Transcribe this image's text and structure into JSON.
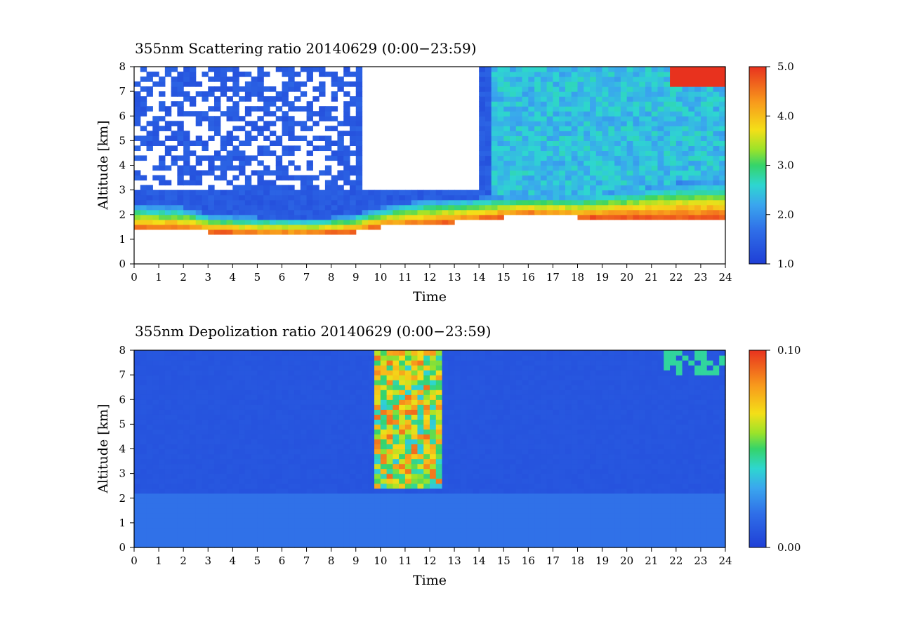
{
  "chart_data": [
    {
      "type": "heatmap",
      "title": "355nm Scattering ratio  20140629 (0:00−23:59)",
      "xlabel": "Time",
      "ylabel": "Altitude [km]",
      "xlim": [
        0,
        24
      ],
      "ylim": [
        0,
        8
      ],
      "x_ticks": [
        "0",
        "1",
        "2",
        "3",
        "4",
        "5",
        "6",
        "7",
        "8",
        "9",
        "10",
        "11",
        "12",
        "13",
        "14",
        "15",
        "16",
        "17",
        "18",
        "19",
        "20",
        "21",
        "22",
        "23",
        "24"
      ],
      "y_ticks": [
        "0",
        "1",
        "2",
        "3",
        "4",
        "5",
        "6",
        "7",
        "8"
      ],
      "colorbar": {
        "range": [
          1.0,
          5.0
        ],
        "tick_labels": [
          "5.0",
          "4.0",
          "3.0",
          "2.0",
          "1.0"
        ],
        "tick_values": [
          5.0,
          4.0,
          3.0,
          2.0,
          1.0
        ]
      },
      "features": {
        "background_value": 1.4,
        "no_data_color": "#ffffff",
        "bl_top_by_hour": [
          {
            "t": 0,
            "top": 2.4,
            "bottom": 1.4
          },
          {
            "t": 2,
            "top": 2.3,
            "bottom": 1.4
          },
          {
            "t": 3,
            "top": 2.0,
            "bottom": 1.3
          },
          {
            "t": 5,
            "top": 1.9,
            "bottom": 1.2
          },
          {
            "t": 7,
            "top": 1.8,
            "bottom": 1.2
          },
          {
            "t": 9,
            "top": 2.0,
            "bottom": 1.3
          },
          {
            "t": 10,
            "top": 2.3,
            "bottom": 1.5
          },
          {
            "t": 12,
            "top": 2.6,
            "bottom": 1.6
          },
          {
            "t": 14,
            "top": 2.7,
            "bottom": 1.8
          },
          {
            "t": 16,
            "top": 2.8,
            "bottom": 2.0
          },
          {
            "t": 18,
            "top": 2.8,
            "bottom": 1.9
          },
          {
            "t": 20,
            "top": 3.0,
            "bottom": 1.9
          },
          {
            "t": 22,
            "top": 3.3,
            "bottom": 1.9
          },
          {
            "t": 23.8,
            "top": 3.4,
            "bottom": 1.9
          }
        ],
        "high_cloud": {
          "t_start": 21.7,
          "t_end": 24,
          "alt_min": 7.2,
          "alt_max": 8,
          "value": 5.0
        }
      }
    },
    {
      "type": "heatmap",
      "title": "355nm Depolization ratio  20140629 (0:00−23:59)",
      "xlabel": "Time",
      "ylabel": "Altitude [km]",
      "xlim": [
        0,
        24
      ],
      "ylim": [
        0,
        8
      ],
      "x_ticks": [
        "0",
        "1",
        "2",
        "3",
        "4",
        "5",
        "6",
        "7",
        "8",
        "9",
        "10",
        "11",
        "12",
        "13",
        "14",
        "15",
        "16",
        "17",
        "18",
        "19",
        "20",
        "21",
        "22",
        "23",
        "24"
      ],
      "y_ticks": [
        "0",
        "1",
        "2",
        "3",
        "4",
        "5",
        "6",
        "7",
        "8"
      ],
      "colorbar": {
        "range": [
          0.0,
          0.1
        ],
        "tick_labels": [
          "0.10",
          "0.00"
        ],
        "tick_values": [
          0.1,
          0.0
        ]
      },
      "features": {
        "background_value": 0.008,
        "dust_column": {
          "t_start": 9.8,
          "t_end": 12.6,
          "alt_min": 2.5,
          "alt_max": 8,
          "value": 0.09
        },
        "high_cloud": {
          "t_start": 21.6,
          "t_end": 24,
          "alt_min": 7.0,
          "alt_max": 8,
          "value": 0.045
        }
      }
    }
  ]
}
